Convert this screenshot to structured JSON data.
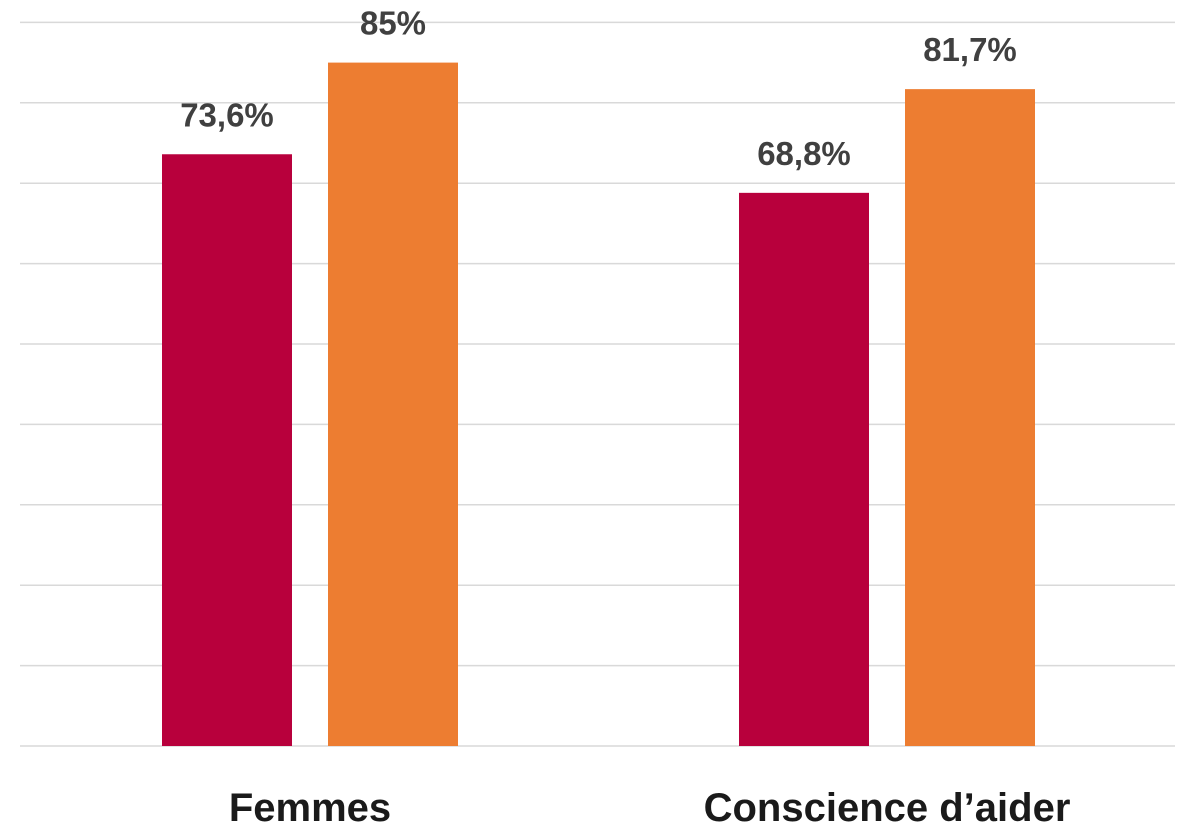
{
  "chart_data": {
    "type": "bar",
    "title": "",
    "xlabel": "",
    "ylabel": "",
    "categories": [
      "Femmes",
      "Conscience d’aider"
    ],
    "series": [
      {
        "values": [
          73.6,
          68.8
        ],
        "labels": [
          "73,6%",
          "68,8%"
        ],
        "color": "#b8003c"
      },
      {
        "values": [
          85,
          81.7
        ],
        "labels": [
          "85%",
          "81,7%"
        ],
        "color": "#ed7d31"
      }
    ],
    "ylim": [
      0,
      90
    ],
    "gridline_step": 10,
    "grid": true,
    "legend": "none"
  }
}
